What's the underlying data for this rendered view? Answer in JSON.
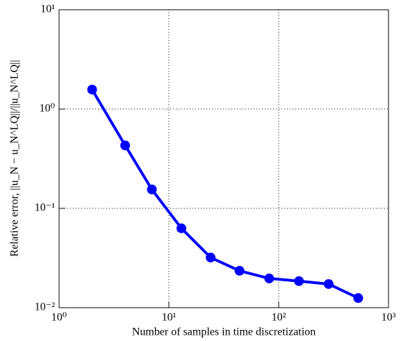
{
  "chart_data": {
    "type": "line",
    "xlabel": "Number of samples in time discretization",
    "ylabel": "Relative error, ||u_N − u_N^LQ||/||u_N^LQ||",
    "x": [
      2,
      4,
      7,
      13,
      24,
      44,
      82,
      153,
      285,
      530
    ],
    "series": [
      {
        "name": "Relative error",
        "color": "#0000ff",
        "values": [
          1.57,
          0.43,
          0.155,
          0.063,
          0.032,
          0.0235,
          0.0197,
          0.0185,
          0.0173,
          0.0125
        ]
      }
    ],
    "xlim": [
      1,
      1000
    ],
    "ylim": [
      0.01,
      10
    ],
    "xticks": [
      {
        "value": 1,
        "label": "10⁰"
      },
      {
        "value": 10,
        "label": "10¹"
      },
      {
        "value": 100,
        "label": "10²"
      },
      {
        "value": 1000,
        "label": "10³"
      }
    ],
    "yticks": [
      {
        "value": 0.01,
        "label": "10⁻²"
      },
      {
        "value": 0.1,
        "label": "10⁻¹"
      },
      {
        "value": 1,
        "label": "10⁰"
      },
      {
        "value": 10,
        "label": "10¹"
      }
    ],
    "xscale": "log",
    "yscale": "log",
    "grid": true
  }
}
